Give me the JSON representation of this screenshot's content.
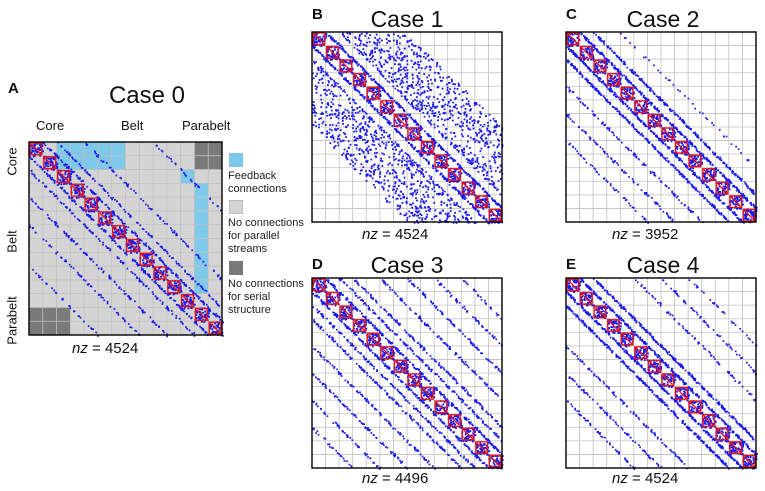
{
  "panels": {
    "A": {
      "letter": "A",
      "title": "Case 0",
      "nz_label": "nz",
      "nz_value": "= 4524"
    },
    "B": {
      "letter": "B",
      "title": "Case 1",
      "nz_label": "nz",
      "nz_value": "= 4524"
    },
    "C": {
      "letter": "C",
      "title": "Case 2",
      "nz_label": "nz",
      "nz_value": "= 3952"
    },
    "D": {
      "letter": "D",
      "title": "Case 3",
      "nz_label": "nz",
      "nz_value": "= 4496"
    },
    "E": {
      "letter": "E",
      "title": "Case 4",
      "nz_label": "nz",
      "nz_value": "= 4524"
    }
  },
  "groups": {
    "core": "Core",
    "belt": "Belt",
    "parabelt": "Parabelt"
  },
  "legend": [
    {
      "text": "Feedback connections",
      "color": "#7ec8ea"
    },
    {
      "text": "No connections for parallel streams",
      "color": "#d4d4d4"
    },
    {
      "text": "No connections for serial structure",
      "color": "#7a7a7a"
    }
  ],
  "colors": {
    "dots": "#1a1aee",
    "diagonal_blocks": "#ee1111",
    "grid": "#c0c0c0",
    "frame": "#000000"
  }
}
